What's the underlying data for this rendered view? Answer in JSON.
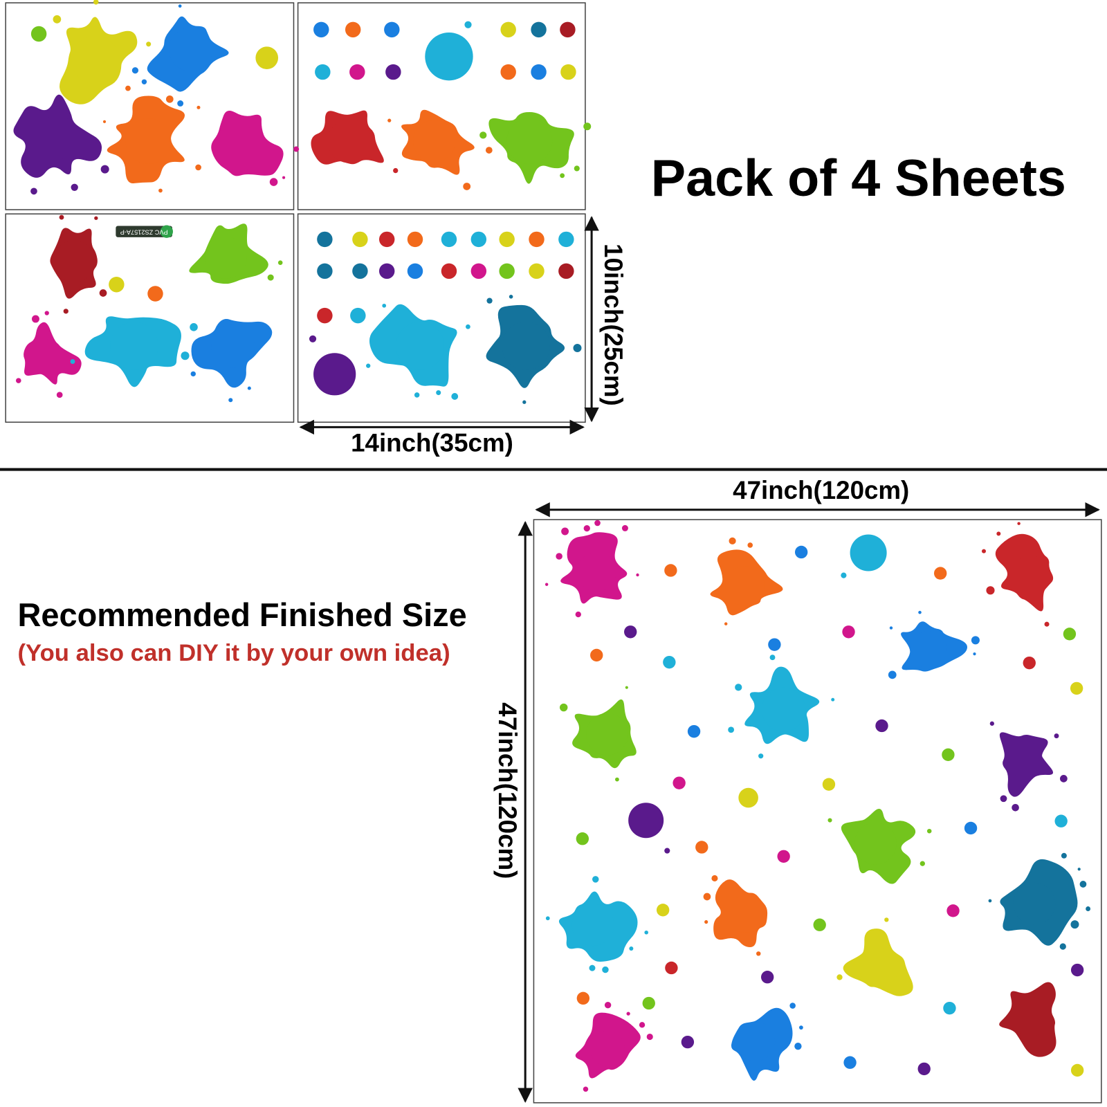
{
  "sheets": {
    "title": "Pack of 4 Sheets",
    "label": "PVC ZS2157A-P",
    "width": "14inch(35cm)",
    "height": "10inch(25cm)"
  },
  "finished": {
    "title": "Recommended Finished Size",
    "note": "(You also can DIY it by your own idea)",
    "width": "47inch(120cm)",
    "height": "47inch(120cm)"
  }
}
